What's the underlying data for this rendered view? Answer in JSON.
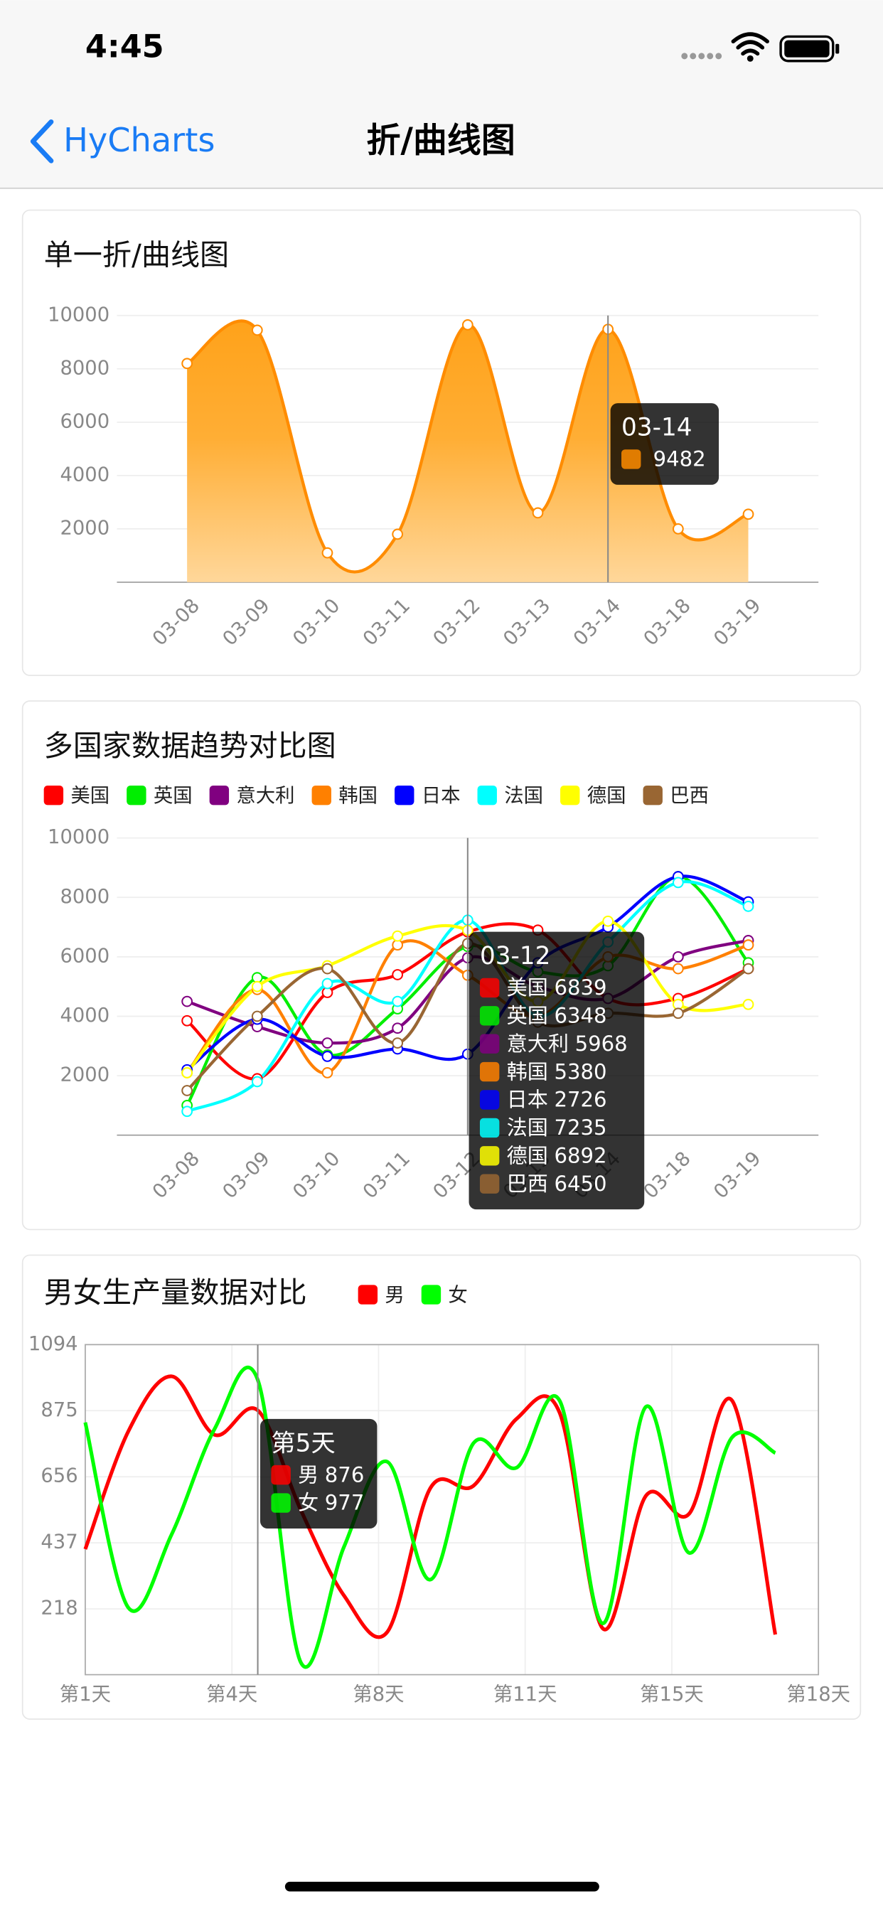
{
  "status_bar": {
    "time": "4:45"
  },
  "nav": {
    "back": "HyCharts",
    "title": "折/曲线图"
  },
  "chart_data": [
    {
      "type": "area",
      "title": "单一折/曲线图",
      "categories": [
        "03-08",
        "03-09",
        "03-10",
        "03-11",
        "03-12",
        "03-13",
        "03-14",
        "03-18",
        "03-19"
      ],
      "values": [
        8200,
        9450,
        1100,
        1800,
        9650,
        2600,
        9482,
        2000,
        2550
      ],
      "color": "#ff8c00",
      "ylim": [
        0,
        10000
      ],
      "yticks": [
        2000,
        4000,
        6000,
        8000,
        10000
      ],
      "grid": true,
      "tooltip": {
        "category": "03-14"
      }
    },
    {
      "type": "line",
      "title": "多国家数据趋势对比图",
      "categories": [
        "03-08",
        "03-09",
        "03-10",
        "03-11",
        "03-12",
        "03-13",
        "03-14",
        "03-18",
        "03-19"
      ],
      "series": [
        {
          "name": "美国",
          "color": "#ff0000",
          "values": [
            3850,
            1900,
            4800,
            5400,
            6839,
            6900,
            4600,
            4600,
            5600
          ]
        },
        {
          "name": "英国",
          "color": "#00ee00",
          "values": [
            1000,
            5300,
            2700,
            4250,
            6348,
            5500,
            5700,
            8700,
            5800
          ]
        },
        {
          "name": "意大利",
          "color": "#800080",
          "values": [
            4500,
            3650,
            3100,
            3600,
            5968,
            5000,
            4600,
            6000,
            6550
          ]
        },
        {
          "name": "韩国",
          "color": "#ff8000",
          "values": [
            2100,
            4900,
            2100,
            6400,
            5380,
            4000,
            6000,
            5600,
            6400
          ]
        },
        {
          "name": "日本",
          "color": "#0000ff",
          "values": [
            2200,
            3900,
            2650,
            2900,
            2726,
            5800,
            7000,
            8700,
            7850
          ]
        },
        {
          "name": "法国",
          "color": "#00ffff",
          "values": [
            800,
            1800,
            5100,
            4500,
            7235,
            4000,
            6500,
            8500,
            7700
          ]
        },
        {
          "name": "德国",
          "color": "#ffff00",
          "values": [
            2100,
            5000,
            5700,
            6700,
            6892,
            4500,
            7200,
            4400,
            4400
          ]
        },
        {
          "name": "巴西",
          "color": "#996633",
          "values": [
            1500,
            4000,
            5600,
            3100,
            6450,
            3800,
            4100,
            4100,
            5600
          ]
        }
      ],
      "ylim": [
        0,
        10000
      ],
      "yticks": [
        2000,
        4000,
        6000,
        8000,
        10000
      ],
      "grid": true,
      "legend": "top",
      "tooltip": {
        "category": "03-12"
      }
    },
    {
      "type": "line",
      "title": "男女生产量数据对比",
      "x": [
        1,
        2,
        3,
        4,
        5,
        6,
        7,
        8,
        9,
        10,
        11,
        12,
        13,
        14,
        15,
        16,
        17
      ],
      "series": [
        {
          "name": "男",
          "color": "#ff0000",
          "values": [
            416,
            807,
            989,
            795,
            876,
            545,
            262,
            141,
            618,
            626,
            848,
            868,
            153,
            593,
            533,
            908,
            133
          ]
        },
        {
          "name": "女",
          "color": "#00ff00",
          "values": [
            836,
            222,
            464,
            815,
            977,
            40,
            424,
            706,
            315,
            767,
            686,
            908,
            170,
            888,
            404,
            787,
            735
          ]
        }
      ],
      "xlim": [
        1,
        18
      ],
      "xticks": [
        {
          "value": 1,
          "label": "第1天"
        },
        {
          "value": 4.4,
          "label": "第4天"
        },
        {
          "value": 7.8,
          "label": "第8天"
        },
        {
          "value": 11.2,
          "label": "第11天"
        },
        {
          "value": 14.6,
          "label": "第15天"
        },
        {
          "value": 18,
          "label": "第18天"
        }
      ],
      "ylim": [
        0,
        1094
      ],
      "yticks": [
        218,
        437,
        656,
        875,
        1094
      ],
      "grid": true,
      "legend": "top-right",
      "tooltip": {
        "title": "第5天",
        "x": 5
      }
    }
  ]
}
